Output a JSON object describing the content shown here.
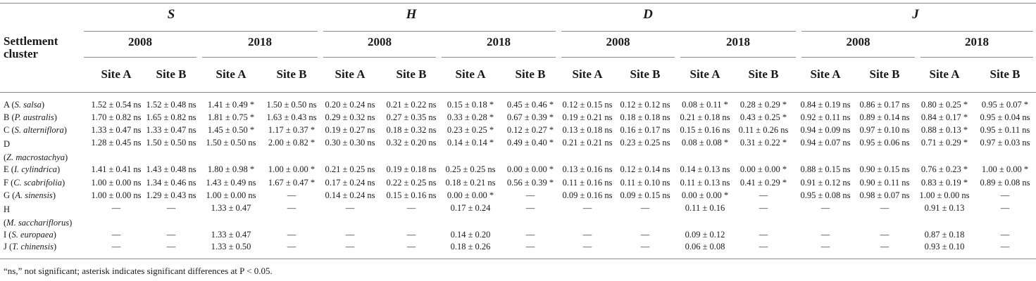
{
  "table": {
    "row_header": "Settlement cluster",
    "groups": [
      "S",
      "H",
      "D",
      "J"
    ],
    "years": [
      "2008",
      "2018"
    ],
    "sites": [
      "Site A",
      "Site B"
    ],
    "rows": [
      {
        "code": "A",
        "species": "S. salsa",
        "two_line": false,
        "values": [
          "1.52 ± 0.54 ns",
          "1.52 ± 0.48 ns",
          "1.41 ± 0.49 *",
          "1.50 ± 0.50 ns",
          "0.20 ± 0.24 ns",
          "0.21 ± 0.22 ns",
          "0.15 ± 0.18 *",
          "0.45 ± 0.46 *",
          "0.12 ± 0.15 ns",
          "0.12 ± 0.12 ns",
          "0.08 ± 0.11 *",
          "0.28 ± 0.29 *",
          "0.84 ± 0.19 ns",
          "0.86 ± 0.17 ns",
          "0.80 ± 0.25 *",
          "0.95 ± 0.07 *"
        ]
      },
      {
        "code": "B",
        "species": "P. australis",
        "two_line": false,
        "values": [
          "1.70 ± 0.82 ns",
          "1.65 ± 0.82 ns",
          "1.81 ± 0.75 *",
          "1.63 ± 0.43 ns",
          "0.29 ± 0.32 ns",
          "0.27 ± 0.35 ns",
          "0.33 ± 0.28 *",
          "0.67 ± 0.39 *",
          "0.19 ± 0.21 ns",
          "0.18 ± 0.18 ns",
          "0.21 ± 0.18 ns",
          "0.43 ± 0.25 *",
          "0.92 ± 0.11 ns",
          "0.89 ± 0.14 ns",
          "0.84 ± 0.17 *",
          "0.95 ± 0.04 ns"
        ]
      },
      {
        "code": "C",
        "species": "S. alterniflora",
        "two_line": false,
        "values": [
          "1.33 ± 0.47 ns",
          "1.33 ± 0.47 ns",
          "1.45 ± 0.50 *",
          "1.17 ± 0.37 *",
          "0.19 ± 0.27 ns",
          "0.18 ± 0.32 ns",
          "0.23 ± 0.25 *",
          "0.12 ± 0.27 *",
          "0.13 ± 0.18 ns",
          "0.16 ± 0.17 ns",
          "0.15 ± 0.16 ns",
          "0.11 ± 0.26 ns",
          "0.94 ± 0.09 ns",
          "0.97 ± 0.10 ns",
          "0.88 ± 0.13 *",
          "0.95 ± 0.11 ns"
        ]
      },
      {
        "code": "D",
        "species": "Z. macrostachya",
        "two_line": true,
        "values": [
          "1.28 ± 0.45 ns",
          "1.50 ± 0.50 ns",
          "1.50 ± 0.50 ns",
          "2.00 ± 0.82 *",
          "0.30 ± 0.30 ns",
          "0.32 ± 0.20 ns",
          "0.14 ± 0.14 *",
          "0.49 ± 0.40 *",
          "0.21 ± 0.21 ns",
          "0.23 ± 0.25 ns",
          "0.08 ± 0.08 *",
          "0.31 ± 0.22 *",
          "0.94 ± 0.07 ns",
          "0.95 ± 0.06 ns",
          "0.71 ± 0.29 *",
          "0.97 ± 0.03 ns"
        ]
      },
      {
        "code": "E",
        "species": "I. cylindrica",
        "two_line": false,
        "values": [
          "1.41 ± 0.41 ns",
          "1.43 ± 0.48 ns",
          "1.80 ± 0.98 *",
          "1.00 ± 0.00 *",
          "0.21 ± 0.25 ns",
          "0.19 ± 0.18 ns",
          "0.25 ± 0.25 ns",
          "0.00 ± 0.00 *",
          "0.13 ± 0.16 ns",
          "0.12 ± 0.14 ns",
          "0.14 ± 0.13 ns",
          "0.00 ± 0.00 *",
          "0.88 ± 0.15 ns",
          "0.90 ± 0.15 ns",
          "0.76 ± 0.23 *",
          "1.00 ± 0.00 *"
        ]
      },
      {
        "code": "F",
        "species": "C. scabrifolia",
        "two_line": false,
        "values": [
          "1.00 ± 0.00 ns",
          "1.34 ± 0.46 ns",
          "1.43 ± 0.49 ns",
          "1.67 ± 0.47 *",
          "0.17 ± 0.24 ns",
          "0.22 ± 0.25 ns",
          "0.18 ± 0.21 ns",
          "0.56 ± 0.39 *",
          "0.11 ± 0.16 ns",
          "0.11 ± 0.10 ns",
          "0.11 ± 0.13 ns",
          "0.41 ± 0.29 *",
          "0.91 ± 0.12 ns",
          "0.90 ± 0.11 ns",
          "0.83 ± 0.19 *",
          "0.89 ± 0.08 ns"
        ]
      },
      {
        "code": "G",
        "species": "A. sinensis",
        "two_line": false,
        "values": [
          "1.00 ± 0.00 ns",
          "1.29 ± 0.43 ns",
          "1.00 ± 0.00 ns",
          "—",
          "0.14 ± 0.24 ns",
          "0.15 ± 0.16 ns",
          "0.00 ± 0.00 *",
          "—",
          "0.09 ± 0.16 ns",
          "0.09 ± 0.15 ns",
          "0.00 ± 0.00 *",
          "—",
          "0.95 ± 0.08 ns",
          "0.98 ± 0.07 ns",
          "1.00 ± 0.00 ns",
          "—"
        ]
      },
      {
        "code": "H",
        "species": "M. sacchariflorus",
        "two_line": true,
        "values": [
          "—",
          "—",
          "1.33 ± 0.47",
          "—",
          "—",
          "—",
          "0.17 ± 0.24",
          "—",
          "—",
          "—",
          "0.11 ± 0.16",
          "—",
          "—",
          "—",
          "0.91 ± 0.13",
          "—"
        ]
      },
      {
        "code": "I",
        "species": "S. europaea",
        "two_line": false,
        "values": [
          "—",
          "—",
          "1.33 ± 0.47",
          "—",
          "—",
          "—",
          "0.14 ± 0.20",
          "—",
          "—",
          "—",
          "0.09 ± 0.12",
          "—",
          "—",
          "—",
          "0.87 ± 0.18",
          "—"
        ]
      },
      {
        "code": "J",
        "species": "T. chinensis",
        "two_line": false,
        "values": [
          "—",
          "—",
          "1.33 ± 0.50",
          "—",
          "—",
          "—",
          "0.18 ± 0.26",
          "—",
          "—",
          "—",
          "0.06 ± 0.08",
          "—",
          "—",
          "—",
          "0.93 ± 0.10",
          "—"
        ]
      }
    ],
    "footnote": "“ns,” not significant; asterisk indicates significant differences at P < 0.05."
  }
}
